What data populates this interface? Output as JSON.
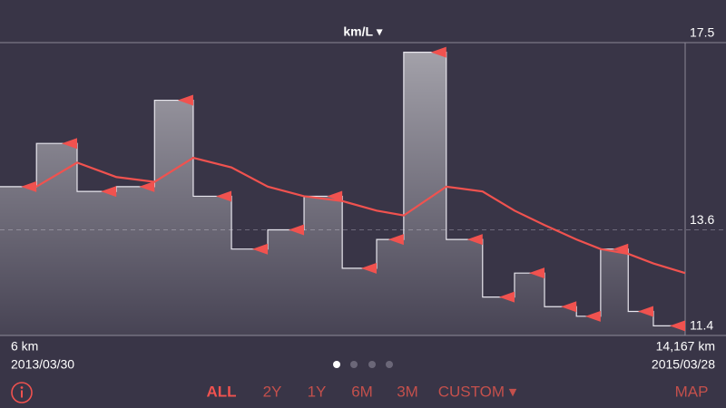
{
  "header": {
    "unit_selector": "km/L ▾"
  },
  "chart_data": {
    "type": "step",
    "x": [
      760,
      1600,
      2410,
      3200,
      4000,
      4790,
      5540,
      6290,
      7080,
      7790,
      8350,
      9230,
      9980,
      10640,
      11260,
      11920,
      12420,
      12990,
      13510,
      14167
    ],
    "series": [
      {
        "type": "step",
        "color": "#f0524f",
        "values": [
          14.5,
          15.4,
          14.4,
          14.5,
          16.3,
          14.3,
          13.2,
          13.6,
          14.3,
          12.8,
          13.4,
          17.3,
          13.4,
          12.2,
          12.7,
          12.0,
          11.8,
          13.2,
          11.9,
          11.6
        ]
      },
      {
        "type": "line",
        "color": "#f0524f",
        "values": [
          14.5,
          15.0,
          14.7,
          14.6,
          15.1,
          14.9,
          14.5,
          14.3,
          14.2,
          14.0,
          13.9,
          14.5,
          14.4,
          14.0,
          13.7,
          13.4,
          13.2,
          13.1,
          12.9,
          12.7
        ]
      }
    ],
    "xlim": [
      6,
      14167
    ],
    "ylim": [
      11.4,
      17.5
    ],
    "yticks": [
      11.4,
      13.6,
      17.5
    ],
    "start_distance": "6 km",
    "start_date": "2013/03/30",
    "end_distance": "14,167 km",
    "end_date": "2015/03/28"
  },
  "footer": {
    "range_buttons": [
      "ALL",
      "2Y",
      "1Y",
      "6M",
      "3M",
      "CUSTOM ▾"
    ],
    "selected": 0,
    "map_button": "MAP"
  }
}
